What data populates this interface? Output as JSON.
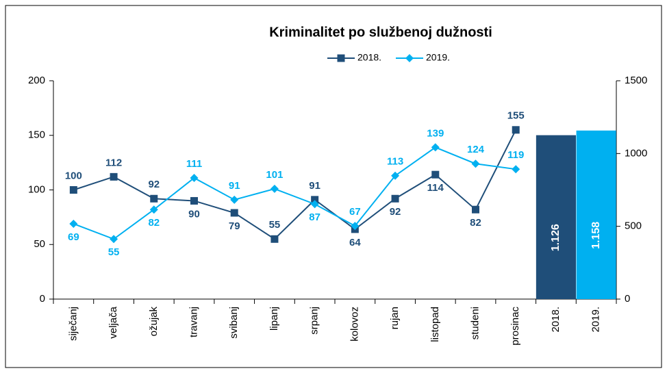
{
  "chart_data": {
    "type": "line",
    "title": "Kriminalitet po službenoj dužnosti",
    "categories": [
      "siječanj",
      "veljača",
      "ožujak",
      "travanj",
      "svibanj",
      "lipanj",
      "srpanj",
      "kolovoz",
      "rujan",
      "listopad",
      "studeni",
      "prosinac",
      "2018.",
      "2019."
    ],
    "series": [
      {
        "name": "2018.",
        "color": "#1f4e79",
        "marker": "square",
        "values": [
          100,
          112,
          92,
          90,
          79,
          55,
          91,
          64,
          92,
          114,
          82,
          155,
          null,
          null
        ]
      },
      {
        "name": "2019.",
        "color": "#00b0f0",
        "marker": "diamond",
        "values": [
          69,
          55,
          82,
          111,
          91,
          101,
          87,
          67,
          113,
          139,
          124,
          119,
          null,
          null
        ]
      },
      {
        "type": "bar",
        "axis": "y2",
        "colors": [
          null,
          null,
          null,
          null,
          null,
          null,
          null,
          null,
          null,
          null,
          null,
          null,
          "#1f4e79",
          "#00b0f0"
        ],
        "values": [
          null,
          null,
          null,
          null,
          null,
          null,
          null,
          null,
          null,
          null,
          null,
          null,
          1126,
          1158
        ],
        "value_labels": [
          null,
          null,
          null,
          null,
          null,
          null,
          null,
          null,
          null,
          null,
          null,
          null,
          "1.126",
          "1.158"
        ]
      }
    ],
    "ylim": [
      0,
      200
    ],
    "yticks": [
      0,
      50,
      100,
      150,
      200
    ],
    "y2lim": [
      0,
      1500
    ],
    "y2ticks": [
      0,
      500,
      1000,
      1500
    ],
    "grid": false,
    "legend": "top"
  }
}
